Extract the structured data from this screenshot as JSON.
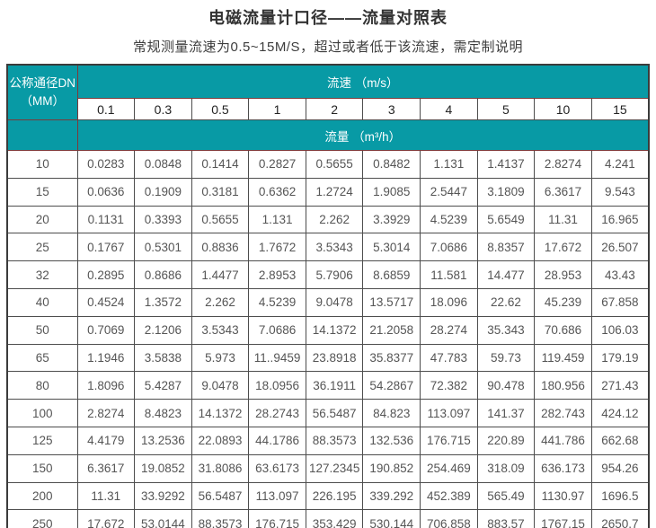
{
  "page": {
    "title": "电磁流量计口径——流量对照表",
    "subtitle": "常规测量流速为0.5~15M/S，超过或者低于该流速，需定制说明"
  },
  "colors": {
    "accent_teal": "#089aa5",
    "teal_cell_border": "#7c3a3a",
    "grid_border": "#4d4d4d",
    "outer_border": "#3b3b3b",
    "body_text": "#555555"
  },
  "table": {
    "corner_header_line1": "公称通径DN",
    "corner_header_line2": "（MM）",
    "velocity_header": "流速 （m/s）",
    "flow_header": "流量 （m³/h）",
    "velocities": [
      "0.1",
      "0.3",
      "0.5",
      "1",
      "2",
      "3",
      "4",
      "5",
      "10",
      "15"
    ],
    "rows": [
      {
        "dn": "10",
        "values": [
          "0.0283",
          "0.0848",
          "0.1414",
          "0.2827",
          "0.5655",
          "0.8482",
          "1.131",
          "1.4137",
          "2.8274",
          "4.241"
        ]
      },
      {
        "dn": "15",
        "values": [
          "0.0636",
          "0.1909",
          "0.3181",
          "0.6362",
          "1.2724",
          "1.9085",
          "2.5447",
          "3.1809",
          "6.3617",
          "9.543"
        ]
      },
      {
        "dn": "20",
        "values": [
          "0.1131",
          "0.3393",
          "0.5655",
          "1.131",
          "2.262",
          "3.3929",
          "4.5239",
          "5.6549",
          "11.31",
          "16.965"
        ]
      },
      {
        "dn": "25",
        "values": [
          "0.1767",
          "0.5301",
          "0.8836",
          "1.7672",
          "3.5343",
          "5.3014",
          "7.0686",
          "8.8357",
          "17.672",
          "26.507"
        ]
      },
      {
        "dn": "32",
        "values": [
          "0.2895",
          "0.8686",
          "1.4477",
          "2.8953",
          "5.7906",
          "8.6859",
          "11.581",
          "14.477",
          "28.953",
          "43.43"
        ]
      },
      {
        "dn": "40",
        "values": [
          "0.4524",
          "1.3572",
          "2.262",
          "4.5239",
          "9.0478",
          "13.5717",
          "18.096",
          "22.62",
          "45.239",
          "67.858"
        ]
      },
      {
        "dn": "50",
        "values": [
          "0.7069",
          "2.1206",
          "3.5343",
          "7.0686",
          "14.1372",
          "21.2058",
          "28.274",
          "35.343",
          "70.686",
          "106.03"
        ]
      },
      {
        "dn": "65",
        "values": [
          "1.1946",
          "3.5838",
          "5.973",
          "11..9459",
          "23.8918",
          "35.8377",
          "47.783",
          "59.73",
          "119.459",
          "179.19"
        ]
      },
      {
        "dn": "80",
        "values": [
          "1.8096",
          "5.4287",
          "9.0478",
          "18.0956",
          "36.1911",
          "54.2867",
          "72.382",
          "90.478",
          "180.956",
          "271.43"
        ]
      },
      {
        "dn": "100",
        "values": [
          "2.8274",
          "8.4823",
          "14.1372",
          "28.2743",
          "56.5487",
          "84.823",
          "113.097",
          "141.37",
          "282.743",
          "424.12"
        ]
      },
      {
        "dn": "125",
        "values": [
          "4.4179",
          "13.2536",
          "22.0893",
          "44.1786",
          "88.3573",
          "132.536",
          "176.715",
          "220.89",
          "441.786",
          "662.68"
        ]
      },
      {
        "dn": "150",
        "values": [
          "6.3617",
          "19.0852",
          "31.8086",
          "63.6173",
          "127.2345",
          "190.852",
          "254.469",
          "318.09",
          "636.173",
          "954.26"
        ]
      },
      {
        "dn": "200",
        "values": [
          "11.31",
          "33.9292",
          "56.5487",
          "113.097",
          "226.195",
          "339.292",
          "452.389",
          "565.49",
          "1130.97",
          "1696.5"
        ]
      },
      {
        "dn": "250",
        "values": [
          "17.672",
          "53.0144",
          "88.3573",
          "176.715",
          "353.429",
          "530.144",
          "706.858",
          "883.57",
          "1767.15",
          "2650.7"
        ]
      }
    ]
  }
}
